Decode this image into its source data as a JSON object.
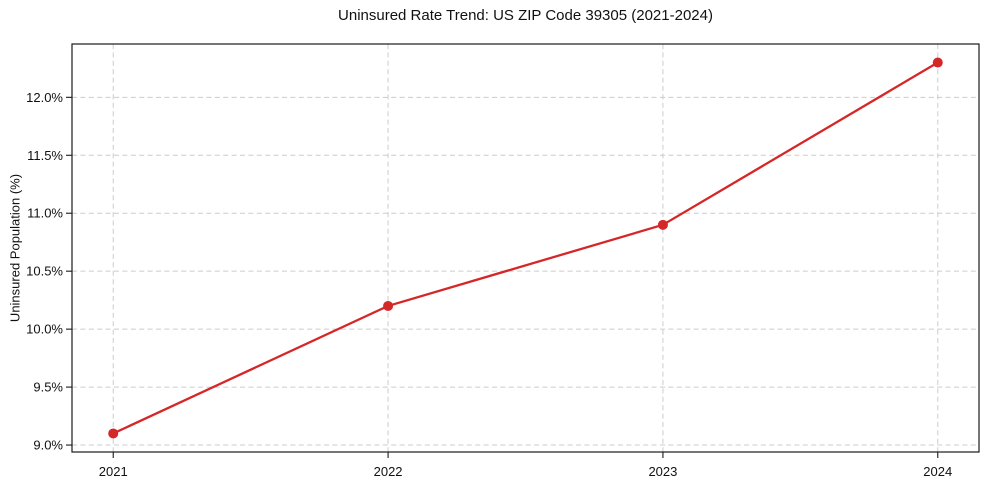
{
  "chart_data": {
    "type": "line",
    "title": "Uninsured Rate Trend: US ZIP Code 39305 (2021-2024)",
    "xlabel": "",
    "ylabel": "Uninsured Population (%)",
    "x": [
      2021,
      2022,
      2023,
      2024
    ],
    "x_tick_labels": [
      "2021",
      "2022",
      "2023",
      "2024"
    ],
    "y_tick_values": [
      9.0,
      9.5,
      10.0,
      10.5,
      11.0,
      11.5,
      12.0
    ],
    "y_tick_labels": [
      "9.0%",
      "9.5%",
      "10.0%",
      "10.5%",
      "11.0%",
      "11.5%",
      "12.0%"
    ],
    "series": [
      {
        "name": "uninsured-rate",
        "values": [
          9.1,
          10.2,
          10.9,
          12.3
        ],
        "color": "#d62728",
        "marker": "circle"
      }
    ],
    "xlim": [
      2020.85,
      2024.15
    ],
    "ylim": [
      8.94,
      12.46
    ],
    "grid": "both",
    "grid_style": "dashed",
    "grid_color": "#cccccc",
    "axis_color": "#1a1a1a",
    "background_color": "#ffffff",
    "legend_position": "none"
  }
}
